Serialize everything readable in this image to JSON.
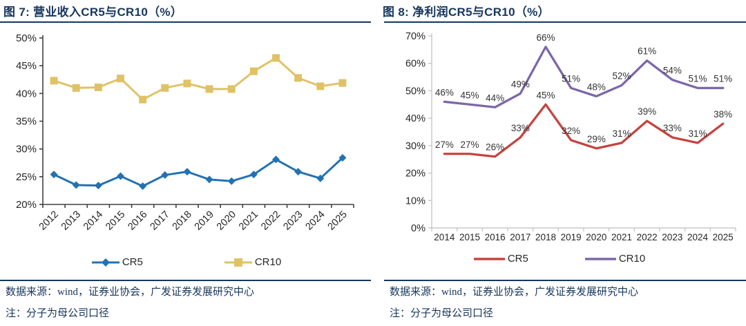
{
  "panels": [
    {
      "title": "图 7: 营业收入CR5与CR10（%）",
      "source": "数据来源：wind，证券业协会，广发证券发展研究中心",
      "note": "注：分子为母公司口径"
    },
    {
      "title": "图 8: 净利润CR5与CR10（%）",
      "source": "数据来源：wind，证券业协会，广发证券发展研究中心",
      "note": "注：分子为母公司口径"
    }
  ],
  "chart_data": [
    {
      "type": "line",
      "title": "营业收入CR5与CR10（%）",
      "categories": [
        "2012",
        "2013",
        "2014",
        "2015",
        "2016",
        "2017",
        "2018",
        "2019",
        "2020",
        "2021",
        "2022",
        "2023",
        "2024",
        "2025"
      ],
      "series": [
        {
          "name": "CR5",
          "color": "#2272B2",
          "marker": "diamond",
          "values": [
            25.4,
            23.5,
            23.4,
            25.1,
            23.3,
            25.3,
            25.9,
            24.5,
            24.2,
            25.4,
            28.1,
            25.9,
            24.7,
            28.4
          ]
        },
        {
          "name": "CR10",
          "color": "#E0C266",
          "marker": "square",
          "values": [
            42.3,
            41.0,
            41.1,
            42.7,
            38.9,
            41.0,
            41.8,
            40.8,
            40.8,
            44.0,
            46.4,
            42.8,
            41.3,
            41.9
          ]
        }
      ],
      "ylim": [
        20,
        50
      ],
      "ytick_step": 5,
      "y_suffix": "%",
      "data_labels": false,
      "x_label_rotation": -45,
      "legend_position": "bottom",
      "grid": false,
      "axis_color": "#404040"
    },
    {
      "type": "line",
      "title": "净利润CR5与CR10（%）",
      "categories": [
        "2014",
        "2015",
        "2016",
        "2017",
        "2018",
        "2019",
        "2020",
        "2021",
        "2022",
        "2023",
        "2024",
        "2025"
      ],
      "series": [
        {
          "name": "CR5",
          "color": "#C5433F",
          "marker": "none",
          "values": [
            27,
            27,
            26,
            33,
            45,
            32,
            29,
            31,
            39,
            33,
            31,
            38
          ]
        },
        {
          "name": "CR10",
          "color": "#7C67A9",
          "marker": "none",
          "values": [
            46,
            45,
            44,
            49,
            66,
            51,
            48,
            52,
            61,
            54,
            51,
            51
          ]
        }
      ],
      "ylim": [
        0,
        70
      ],
      "ytick_step": 10,
      "y_suffix": "%",
      "data_labels": true,
      "x_label_rotation": 0,
      "legend_position": "bottom",
      "grid": false,
      "axis_color": "#BFBFBF"
    }
  ],
  "colors": {
    "title_navy": "#17365D",
    "cr5_revenue_blue": "#2272B2",
    "cr10_revenue_yellow": "#E0C266",
    "cr5_profit_red": "#C5433F",
    "cr10_profit_purple": "#7C67A9",
    "tick_label": "#262626",
    "data_label": "#333333"
  }
}
